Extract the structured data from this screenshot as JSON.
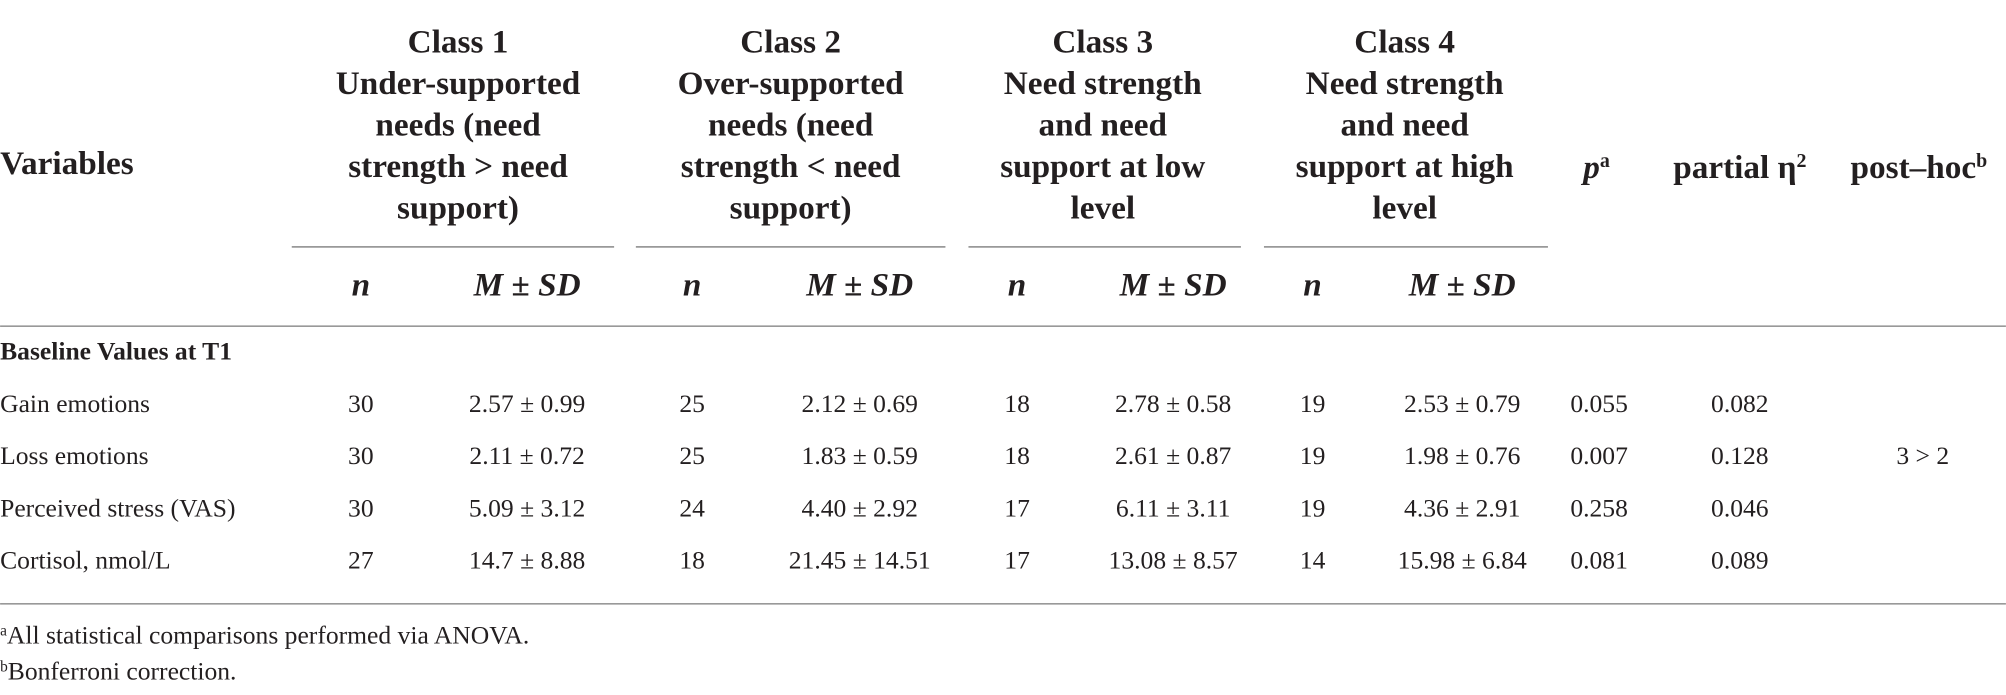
{
  "table": {
    "header": {
      "variables": "Variables",
      "classes": [
        {
          "lines": [
            "Class 1",
            "Under-supported",
            "needs (need",
            "strength > need",
            "support)"
          ],
          "n": "n",
          "msd": "M ± SD"
        },
        {
          "lines": [
            "Class 2",
            "Over-supported",
            "needs (need",
            "strength < need",
            "support)"
          ],
          "n": "n",
          "msd": "M ± SD"
        },
        {
          "lines": [
            "Class 3",
            "Need strength",
            "and need",
            "support at low",
            "level"
          ],
          "n": "n",
          "msd": "M ± SD"
        },
        {
          "lines": [
            "Class 4",
            "Need strength",
            "and need",
            "support at high",
            "level"
          ],
          "n": "n",
          "msd": "M ± SD"
        }
      ],
      "p": {
        "text": "p",
        "sup": "a"
      },
      "eta": {
        "text": "partial η",
        "sup": "2"
      },
      "posthoc": {
        "text": "post–hoc",
        "sup": "b"
      }
    },
    "section": "Baseline Values at T1",
    "rows": [
      {
        "label": "Gain emotions",
        "cells": [
          "30",
          "2.57 ± 0.99",
          "25",
          "2.12 ± 0.69",
          "18",
          "2.78 ± 0.58",
          "19",
          "2.53 ± 0.79",
          "0.055",
          "0.082"
        ]
      },
      {
        "label": "Loss emotions",
        "cells": [
          "30",
          "2.11 ± 0.72",
          "25",
          "1.83 ± 0.59",
          "18",
          "2.61 ± 0.87",
          "19",
          "1.98 ± 0.76",
          "0.007",
          "0.128"
        ],
        "posthoc": "3 > 2"
      },
      {
        "label": "Perceived stress (VAS)",
        "cells": [
          "30",
          "5.09 ± 3.12",
          "24",
          "4.40 ± 2.92",
          "17",
          "6.11 ± 3.11",
          "19",
          "4.36 ± 2.91",
          "0.258",
          "0.046"
        ]
      },
      {
        "label": "Cortisol, nmol/L",
        "cells": [
          "27",
          "14.7 ± 8.88",
          "18",
          "21.45 ± 14.51",
          "17",
          "13.08 ± 8.57",
          "14",
          "15.98 ± 6.84",
          "0.081",
          "0.089"
        ]
      }
    ],
    "footnotes": [
      {
        "mark": "a",
        "text": "All statistical comparisons performed via ANOVA."
      },
      {
        "mark": "b",
        "text": "Bonferroni correction."
      }
    ]
  }
}
